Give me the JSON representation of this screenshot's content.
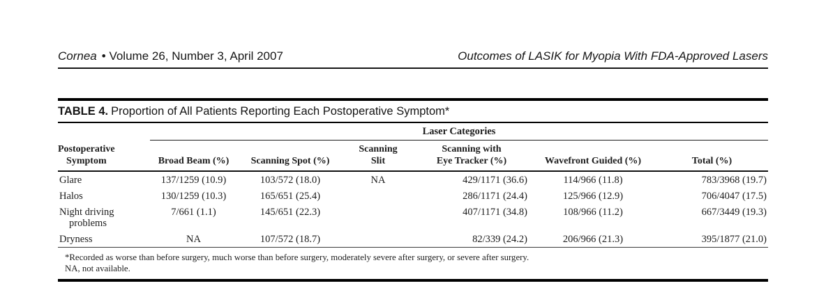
{
  "page_header": {
    "journal": "Cornea",
    "issue": "• Volume 26, Number 3, April 2007",
    "article_title": "Outcomes of LASIK for Myopia With FDA-Approved Lasers"
  },
  "table": {
    "label": "TABLE 4.",
    "title": "Proportion of All Patients Reporting Each Postoperative Symptom*",
    "span_header": "Laser Categories",
    "columns": {
      "symptom": [
        "Postoperative",
        "Symptom"
      ],
      "broad_beam": "Broad Beam (%)",
      "scanning_spot": "Scanning Spot (%)",
      "scanning_slit": [
        "Scanning",
        "Slit"
      ],
      "eye_tracker": [
        "Scanning with",
        "Eye Tracker (%)"
      ],
      "wavefront": "Wavefront Guided (%)",
      "total": "Total (%)"
    },
    "rows": [
      {
        "symptom": [
          "Glare"
        ],
        "broad_beam": "137/1259 (10.9)",
        "scanning_spot": "103/572 (18.0)",
        "scanning_slit": "NA",
        "eye_tracker": "429/1171 (36.6)",
        "wavefront": "114/966 (11.8)",
        "total": "783/3968 (19.7)"
      },
      {
        "symptom": [
          "Halos"
        ],
        "broad_beam": "130/1259 (10.3)",
        "scanning_spot": "165/651 (25.4)",
        "scanning_slit": "",
        "eye_tracker": "286/1171 (24.4)",
        "wavefront": "125/966 (12.9)",
        "total": "706/4047 (17.5)"
      },
      {
        "symptom": [
          "Night driving",
          "problems"
        ],
        "broad_beam": "7/661 (1.1)",
        "scanning_spot": "145/651 (22.3)",
        "scanning_slit": "",
        "eye_tracker": "407/1171 (34.8)",
        "wavefront": "108/966 (11.2)",
        "total": "667/3449 (19.3)"
      },
      {
        "symptom": [
          "Dryness"
        ],
        "broad_beam": "NA",
        "scanning_spot": "107/572 (18.7)",
        "scanning_slit": "",
        "eye_tracker": "82/339 (24.2)",
        "wavefront": "206/966 (21.3)",
        "total": "395/1877 (21.0)"
      }
    ],
    "footnotes": [
      "*Recorded as worse than before surgery, much worse than before surgery, moderately severe after surgery, or severe after surgery.",
      "NA, not available."
    ]
  },
  "colors": {
    "rule": "#000000",
    "text": "#1a1a1a",
    "background": "#ffffff"
  }
}
